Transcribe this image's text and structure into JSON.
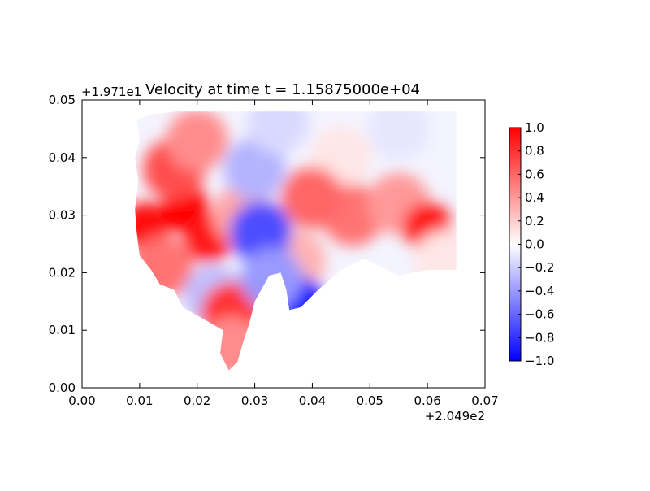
{
  "chart_data": {
    "type": "heatmap",
    "title": "Velocity at time t = 1.15875000e+04",
    "xlabel": "",
    "ylabel": "",
    "x_offset_label": "+2.049e2",
    "y_offset_label": "+1.971e1",
    "xlim": [
      0.0,
      0.07
    ],
    "ylim": [
      0.0,
      0.05
    ],
    "x_ticks": [
      "0.00",
      "0.01",
      "0.02",
      "0.03",
      "0.04",
      "0.05",
      "0.06",
      "0.07"
    ],
    "y_ticks": [
      "0.00",
      "0.01",
      "0.02",
      "0.03",
      "0.04",
      "0.05"
    ],
    "colorbar": {
      "colormap": "bwr",
      "min": -1.0,
      "max": 1.0,
      "ticks": [
        "1.0",
        "0.8",
        "0.6",
        "0.4",
        "0.2",
        "0.0",
        "−0.2",
        "−0.4",
        "−0.6",
        "−0.8",
        "−1.0"
      ]
    },
    "grid": false,
    "colors": {
      "positive": "#ff0000",
      "zero": "#ffffff",
      "negative": "#0000ff"
    },
    "field": {
      "description_of_domain": "land mask with flow field",
      "regions": [
        {
          "x": 0.011,
          "y": 0.028,
          "v": 0.95
        },
        {
          "x": 0.018,
          "y": 0.031,
          "v": 1.0
        },
        {
          "x": 0.022,
          "y": 0.026,
          "v": 0.9
        },
        {
          "x": 0.016,
          "y": 0.038,
          "v": 0.7
        },
        {
          "x": 0.02,
          "y": 0.043,
          "v": 0.45
        },
        {
          "x": 0.014,
          "y": 0.021,
          "v": 0.55
        },
        {
          "x": 0.028,
          "y": 0.03,
          "v": 0.35
        },
        {
          "x": 0.03,
          "y": 0.038,
          "v": -0.3
        },
        {
          "x": 0.034,
          "y": 0.046,
          "v": -0.15
        },
        {
          "x": 0.045,
          "y": 0.04,
          "v": 0.1
        },
        {
          "x": 0.055,
          "y": 0.045,
          "v": -0.1
        },
        {
          "x": 0.047,
          "y": 0.03,
          "v": 0.55
        },
        {
          "x": 0.04,
          "y": 0.033,
          "v": 0.6
        },
        {
          "x": 0.055,
          "y": 0.032,
          "v": 0.4
        },
        {
          "x": 0.06,
          "y": 0.028,
          "v": 0.9
        },
        {
          "x": 0.063,
          "y": 0.022,
          "v": 0.1
        },
        {
          "x": 0.037,
          "y": 0.022,
          "v": 0.3
        },
        {
          "x": 0.023,
          "y": 0.016,
          "v": -0.25
        },
        {
          "x": 0.026,
          "y": 0.013,
          "v": 0.8
        },
        {
          "x": 0.026,
          "y": 0.007,
          "v": 0.45
        },
        {
          "x": 0.038,
          "y": 0.015,
          "v": -0.9
        },
        {
          "x": 0.031,
          "y": 0.027,
          "v": -0.7
        },
        {
          "x": 0.033,
          "y": 0.019,
          "v": -0.4
        }
      ]
    }
  }
}
